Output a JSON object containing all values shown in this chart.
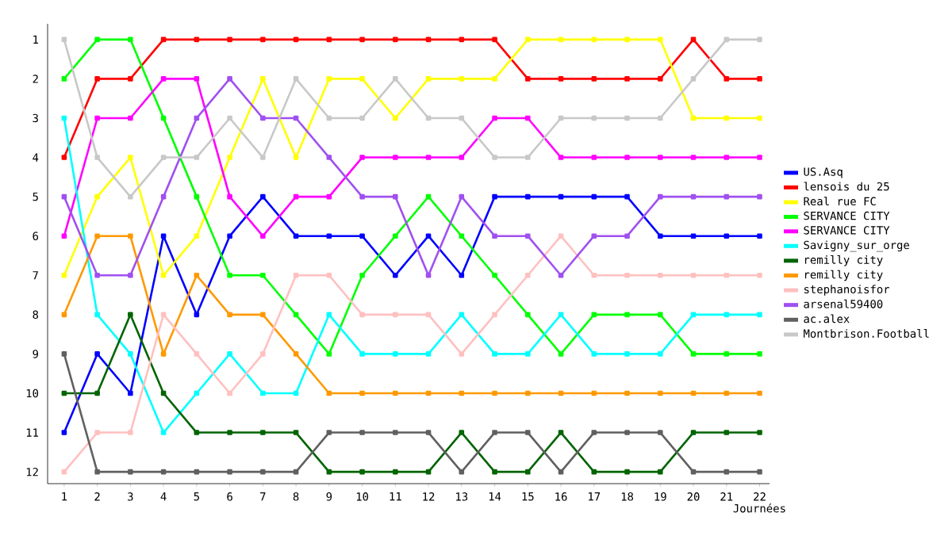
{
  "chart_data": {
    "type": "line",
    "xlabel": "Journées",
    "x": [
      1,
      2,
      3,
      4,
      5,
      6,
      7,
      8,
      9,
      10,
      11,
      12,
      13,
      14,
      15,
      16,
      17,
      18,
      19,
      20,
      21,
      22
    ],
    "xlim": [
      0.5,
      22.3
    ],
    "ylim": [
      12.3,
      0.6
    ],
    "xticks": [
      1,
      2,
      3,
      4,
      5,
      6,
      7,
      8,
      9,
      10,
      11,
      12,
      13,
      14,
      15,
      16,
      17,
      18,
      19,
      20,
      21,
      22
    ],
    "yticks": [
      1,
      2,
      3,
      4,
      5,
      6,
      7,
      8,
      9,
      10,
      11,
      12
    ],
    "legend": "right",
    "marker": "square",
    "line_style": "solid",
    "grid": false,
    "series": [
      {
        "name": "US.Asq",
        "color": "#0000ff",
        "values": [
          11,
          9,
          10,
          6,
          8,
          6,
          5,
          6,
          6,
          6,
          7,
          6,
          7,
          5,
          5,
          5,
          5,
          5,
          6,
          6,
          6,
          6
        ]
      },
      {
        "name": "lensois du 25",
        "color": "#ff0000",
        "values": [
          4,
          2,
          2,
          1,
          1,
          1,
          1,
          1,
          1,
          1,
          1,
          1,
          1,
          1,
          2,
          2,
          2,
          2,
          2,
          1,
          2,
          2
        ]
      },
      {
        "name": "Real rue FC",
        "color": "#ffff00",
        "values": [
          7,
          5,
          4,
          7,
          6,
          4,
          2,
          4,
          2,
          2,
          3,
          2,
          2,
          2,
          1,
          1,
          1,
          1,
          1,
          3,
          3,
          3
        ]
      },
      {
        "name": "SERVANCE CITY",
        "color": "#00ff00",
        "values": [
          2,
          1,
          1,
          3,
          5,
          7,
          7,
          8,
          9,
          7,
          6,
          5,
          6,
          7,
          8,
          9,
          8,
          8,
          8,
          9,
          9,
          9
        ]
      },
      {
        "name": "SERVANCE CITY",
        "color": "#ff00ff",
        "values": [
          6,
          3,
          3,
          2,
          2,
          5,
          6,
          5,
          5,
          4,
          4,
          4,
          4,
          3,
          3,
          4,
          4,
          4,
          4,
          4,
          4,
          4
        ]
      },
      {
        "name": "Savigny_sur_orge",
        "color": "#00ffff",
        "values": [
          3,
          8,
          9,
          11,
          10,
          9,
          10,
          10,
          8,
          9,
          9,
          9,
          8,
          9,
          9,
          8,
          9,
          9,
          9,
          8,
          8,
          8
        ]
      },
      {
        "name": "remilly city",
        "color": "#006400",
        "values": [
          10,
          10,
          8,
          10,
          11,
          11,
          11,
          11,
          12,
          12,
          12,
          12,
          11,
          12,
          12,
          11,
          12,
          12,
          12,
          11,
          11,
          11
        ]
      },
      {
        "name": "remilly city",
        "color": "#ff9900",
        "values": [
          8,
          6,
          6,
          9,
          7,
          8,
          8,
          9,
          10,
          10,
          10,
          10,
          10,
          10,
          10,
          10,
          10,
          10,
          10,
          10,
          10,
          10
        ]
      },
      {
        "name": "stephanoisfor",
        "color": "#ffc0c0",
        "values": [
          12,
          11,
          11,
          8,
          9,
          10,
          9,
          7,
          7,
          8,
          8,
          8,
          9,
          8,
          7,
          6,
          7,
          7,
          7,
          7,
          7,
          7
        ]
      },
      {
        "name": "arsenal59400",
        "color": "#a050f0",
        "values": [
          5,
          7,
          7,
          5,
          3,
          2,
          3,
          3,
          4,
          5,
          5,
          7,
          5,
          6,
          6,
          7,
          6,
          6,
          5,
          5,
          5,
          5
        ]
      },
      {
        "name": "ac.alex",
        "color": "#606060",
        "values": [
          9,
          12,
          12,
          12,
          12,
          12,
          12,
          12,
          11,
          11,
          11,
          11,
          12,
          11,
          11,
          12,
          11,
          11,
          11,
          12,
          12,
          12
        ]
      },
      {
        "name": "Montbrison.Football",
        "color": "#c8c8c8",
        "values": [
          1,
          4,
          5,
          4,
          4,
          3,
          4,
          2,
          3,
          3,
          2,
          3,
          3,
          4,
          4,
          3,
          3,
          3,
          3,
          2,
          1,
          1
        ]
      }
    ]
  }
}
